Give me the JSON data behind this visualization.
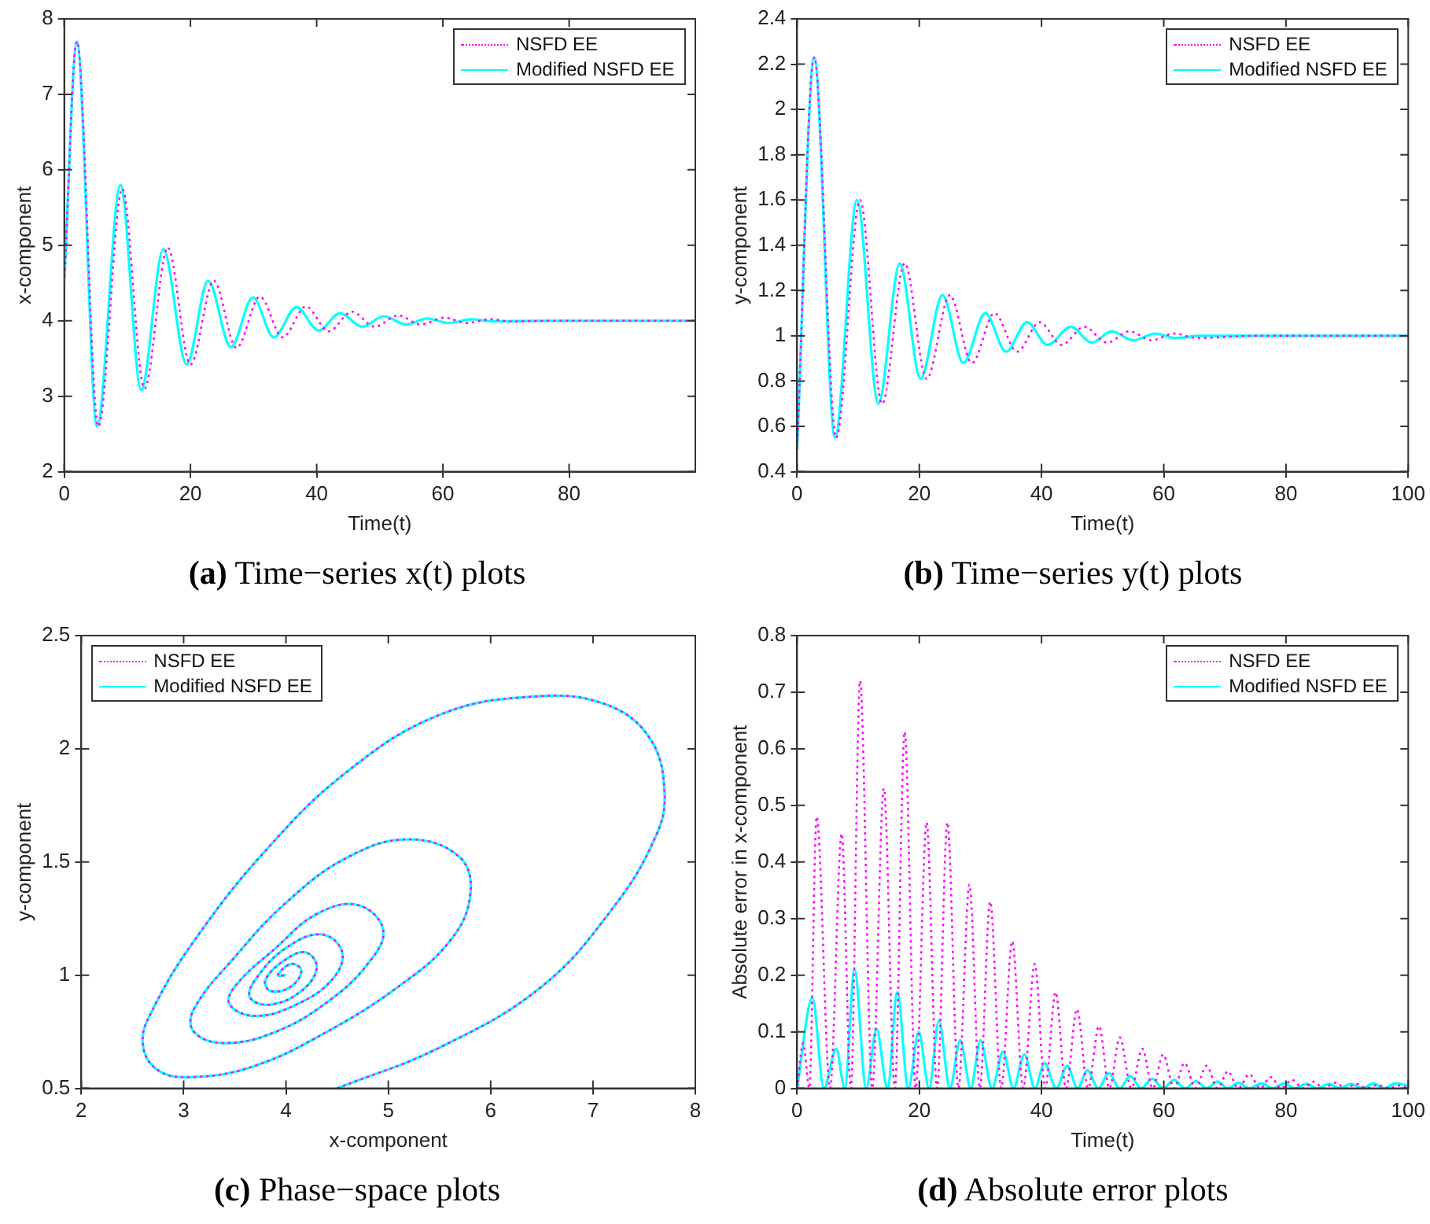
{
  "chart_data": [
    {
      "type": "line",
      "title": "(a) Time−series x(t) plots",
      "xlabel": "Time(t)",
      "ylabel": "x-component",
      "xlim": [
        0,
        100
      ],
      "xticks": [
        0,
        20,
        40,
        60,
        80
      ],
      "ylim": [
        2,
        8
      ],
      "yticks": [
        2,
        3,
        4,
        5,
        6,
        7,
        8
      ],
      "grid": false,
      "legend": "top right",
      "marker": "none",
      "series": [
        {
          "name": "NSFD EE",
          "color": "#ff00ff",
          "line_style": "dotted",
          "x": [
            0,
            2,
            5.4,
            9.2,
            12.7,
            16.4,
            20,
            23.7,
            27.3,
            31,
            34.6,
            38.3,
            41.9,
            45.6,
            49.2,
            52.9,
            56.5,
            60.2,
            63.8,
            67.5,
            71,
            78,
            100
          ],
          "values": [
            4.5,
            7.7,
            2.6,
            5.75,
            3.1,
            4.97,
            3.42,
            4.53,
            3.64,
            4.32,
            3.78,
            4.19,
            3.86,
            4.12,
            3.92,
            4.07,
            3.95,
            4.04,
            3.97,
            4.02,
            3.99,
            4.0,
            4.0
          ]
        },
        {
          "name": "Modified NSFD EE",
          "color": "#00ffff",
          "line_style": "solid",
          "x": [
            0,
            2,
            5.2,
            8.9,
            12.2,
            15.7,
            19.4,
            22.8,
            26.4,
            29.9,
            33.2,
            36.8,
            40.3,
            43.7,
            47.2,
            50.6,
            54.2,
            57.5,
            60.9,
            64.5,
            68,
            75,
            100
          ],
          "values": [
            4.5,
            7.7,
            2.6,
            5.8,
            3.08,
            4.95,
            3.42,
            4.53,
            3.65,
            4.31,
            3.78,
            4.18,
            3.87,
            4.1,
            3.92,
            4.06,
            3.95,
            4.03,
            3.97,
            4.02,
            3.99,
            4.0,
            4.0
          ]
        }
      ]
    },
    {
      "type": "line",
      "title": "(b) Time−series y(t) plots",
      "xlabel": "Time(t)",
      "ylabel": "y-component",
      "xlim": [
        0,
        100
      ],
      "xticks": [
        0,
        20,
        40,
        60,
        80,
        100
      ],
      "ylim": [
        0.4,
        2.4
      ],
      "yticks": [
        0.4,
        0.6,
        0.8,
        1,
        1.2,
        1.4,
        1.6,
        1.8,
        2,
        2.2,
        2.4
      ],
      "grid": false,
      "legend": "top right",
      "marker": "none",
      "series": [
        {
          "name": "NSFD EE",
          "color": "#ff00ff",
          "line_style": "dotted",
          "x": [
            0,
            2.8,
            6.4,
            10.3,
            13.9,
            17.6,
            21.2,
            25,
            28.6,
            32.3,
            36,
            39.7,
            43.3,
            47,
            50.7,
            54.4,
            58,
            61.7,
            65.4,
            75,
            100
          ],
          "values": [
            0.5,
            2.23,
            0.55,
            1.6,
            0.7,
            1.32,
            0.81,
            1.18,
            0.88,
            1.1,
            0.93,
            1.06,
            0.96,
            1.04,
            0.97,
            1.02,
            0.98,
            1.01,
            0.99,
            1.0,
            1.0
          ]
        },
        {
          "name": "Modified NSFD EE",
          "color": "#00ffff",
          "line_style": "solid",
          "x": [
            0,
            2.8,
            6.2,
            9.8,
            13.3,
            16.8,
            20.2,
            23.8,
            27.2,
            30.8,
            34.2,
            37.6,
            41,
            44.8,
            48.2,
            51.5,
            55,
            58.6,
            62,
            66,
            72,
            100
          ],
          "values": [
            0.5,
            2.23,
            0.55,
            1.6,
            0.7,
            1.32,
            0.81,
            1.18,
            0.88,
            1.1,
            0.93,
            1.06,
            0.96,
            1.04,
            0.97,
            1.02,
            0.98,
            1.01,
            0.99,
            1.0,
            1.0,
            1.0
          ]
        }
      ]
    },
    {
      "type": "line",
      "title": "(c) Phase−space plots",
      "xlabel": "x-component",
      "ylabel": "y-component",
      "xlim": [
        2,
        8
      ],
      "xticks": [
        2,
        3,
        4,
        5,
        6,
        7,
        8
      ],
      "ylim": [
        0.5,
        2.5
      ],
      "yticks": [
        0.5,
        1,
        1.5,
        2,
        2.5
      ],
      "grid": false,
      "legend": "top left",
      "marker": "none",
      "series": [
        {
          "name": "NSFD EE",
          "color": "#ff00ff",
          "line_style": "dotted",
          "x": [
            4.5,
            5.5,
            6.5,
            7.2,
            7.6,
            7.7,
            7.55,
            7.1,
            6.4,
            5.5,
            4.6,
            3.8,
            3.1,
            2.7,
            2.6,
            2.75,
            3.1,
            3.7,
            4.4,
            5.1,
            5.6,
            5.8,
            5.7,
            5.2,
            4.6,
            4.0,
            3.5,
            3.1,
            3.1,
            3.4,
            3.9,
            4.4,
            4.8,
            4.95,
            4.7,
            4.3,
            3.9,
            3.5,
            3.45,
            3.7,
            4.1,
            4.45,
            4.55,
            4.35,
            4.0,
            3.7,
            3.65,
            3.85,
            4.15,
            4.3,
            4.2,
            4.0,
            3.8,
            3.85,
            4.05,
            4.15,
            4.05,
            3.92,
            4.0
          ],
          "values": [
            0.5,
            0.68,
            0.95,
            1.3,
            1.6,
            1.8,
            2.05,
            2.2,
            2.23,
            2.15,
            1.9,
            1.55,
            1.15,
            0.85,
            0.7,
            0.58,
            0.55,
            0.6,
            0.75,
            0.95,
            1.15,
            1.35,
            1.52,
            1.6,
            1.52,
            1.32,
            1.08,
            0.85,
            0.75,
            0.7,
            0.75,
            0.88,
            1.05,
            1.2,
            1.31,
            1.27,
            1.12,
            0.95,
            0.87,
            0.82,
            0.87,
            0.98,
            1.1,
            1.18,
            1.12,
            0.98,
            0.9,
            0.87,
            0.93,
            1.03,
            1.1,
            1.07,
            0.98,
            0.93,
            0.95,
            1.02,
            1.05,
            1.0,
            1.0
          ]
        },
        {
          "name": "Modified NSFD EE",
          "color": "#00ffff",
          "line_style": "solid",
          "x": [
            4.5,
            5.5,
            6.5,
            7.2,
            7.6,
            7.7,
            7.55,
            7.1,
            6.4,
            5.5,
            4.6,
            3.8,
            3.1,
            2.7,
            2.6,
            2.75,
            3.1,
            3.7,
            4.4,
            5.1,
            5.6,
            5.8,
            5.7,
            5.2,
            4.6,
            4.0,
            3.5,
            3.1,
            3.1,
            3.4,
            3.9,
            4.4,
            4.8,
            4.95,
            4.7,
            4.3,
            3.9,
            3.5,
            3.45,
            3.7,
            4.1,
            4.45,
            4.55,
            4.35,
            4.0,
            3.7,
            3.65,
            3.85,
            4.15,
            4.3,
            4.2,
            4.0,
            3.8,
            3.85,
            4.05,
            4.15,
            4.05,
            3.92,
            4.0
          ],
          "values": [
            0.5,
            0.68,
            0.95,
            1.3,
            1.6,
            1.8,
            2.05,
            2.2,
            2.23,
            2.15,
            1.9,
            1.55,
            1.15,
            0.85,
            0.7,
            0.58,
            0.55,
            0.6,
            0.75,
            0.95,
            1.15,
            1.35,
            1.52,
            1.6,
            1.52,
            1.32,
            1.08,
            0.85,
            0.75,
            0.7,
            0.75,
            0.88,
            1.05,
            1.2,
            1.31,
            1.27,
            1.12,
            0.95,
            0.87,
            0.82,
            0.87,
            0.98,
            1.1,
            1.18,
            1.12,
            0.98,
            0.9,
            0.87,
            0.93,
            1.03,
            1.1,
            1.07,
            0.98,
            0.93,
            0.95,
            1.02,
            1.05,
            1.0,
            1.0
          ]
        }
      ]
    },
    {
      "type": "line",
      "title": "(d) Absolute error plots",
      "xlabel": "Time(t)",
      "ylabel": "Absolute error in x-component",
      "xlim": [
        0,
        100
      ],
      "xticks": [
        0,
        20,
        40,
        60,
        80,
        100
      ],
      "ylim": [
        0,
        0.8
      ],
      "yticks": [
        0,
        0.1,
        0.2,
        0.3,
        0.4,
        0.5,
        0.6,
        0.7,
        0.8
      ],
      "grid": false,
      "legend": "top right",
      "marker": "none",
      "series": [
        {
          "name": "NSFD EE",
          "color": "#ff00ff",
          "line_style": "dotted",
          "x": [
            0,
            1,
            2,
            3.2,
            5.4,
            7.3,
            8.8,
            10.3,
            12.3,
            14.2,
            16,
            17.6,
            19.4,
            21.2,
            22.9,
            24.6,
            26.4,
            28.2,
            29.9,
            31.6,
            33.4,
            35.2,
            37,
            38.9,
            40.6,
            42.3,
            44,
            45.8,
            47.6,
            49.4,
            51.1,
            52.8,
            54.7,
            56.5,
            58.2,
            59.9,
            61.7,
            63.4,
            65.2,
            67,
            68.8,
            70.5,
            72.2,
            74,
            75.8,
            77.5,
            79.2,
            81,
            82.8,
            84.5,
            86.2,
            88,
            89.8,
            91.5,
            93.2,
            95,
            96.8,
            98.5,
            100
          ],
          "values": [
            0,
            0.08,
            0,
            0.48,
            0,
            0.45,
            0,
            0.72,
            0,
            0.53,
            0,
            0.63,
            0,
            0.47,
            0,
            0.47,
            0,
            0.36,
            0,
            0.33,
            0,
            0.26,
            0,
            0.22,
            0,
            0.17,
            0,
            0.14,
            0,
            0.11,
            0,
            0.09,
            0,
            0.07,
            0,
            0.06,
            0,
            0.045,
            0,
            0.04,
            0,
            0.03,
            0,
            0.025,
            0,
            0.02,
            0,
            0.015,
            0,
            0.012,
            0,
            0.01,
            0,
            0.008,
            0,
            0.006,
            0,
            0.005,
            0
          ]
        },
        {
          "name": "Modified NSFD EE",
          "color": "#00ffff",
          "line_style": "solid",
          "x": [
            0,
            2.5,
            4.4,
            6.4,
            7.8,
            9.4,
            11.3,
            13,
            14.8,
            16.4,
            18.2,
            19.9,
            21.6,
            23.2,
            25,
            26.7,
            28.4,
            30,
            31.9,
            33.7,
            35.4,
            37.2,
            38.9,
            40.5,
            42.4,
            44.2,
            45.9,
            47.5,
            49.3,
            51,
            52.8,
            54.5,
            56.3,
            58.1,
            59.9,
            61.7,
            63.5,
            65.3,
            67,
            68.8,
            70.5,
            72.2,
            74,
            76,
            77.9,
            79.7,
            81.5,
            83.3,
            85.1,
            87,
            88.8,
            90.6,
            92.5,
            94.3,
            96.1,
            97.9,
            100
          ],
          "values": [
            0,
            0.16,
            0,
            0.07,
            0,
            0.21,
            0,
            0.105,
            0,
            0.17,
            0,
            0.1,
            0,
            0.12,
            0,
            0.085,
            0,
            0.085,
            0,
            0.065,
            0,
            0.06,
            0,
            0.045,
            0,
            0.04,
            0,
            0.032,
            0,
            0.027,
            0,
            0.022,
            0,
            0.017,
            0,
            0.015,
            0,
            0.013,
            0,
            0.012,
            0,
            0.01,
            0,
            0.009,
            0,
            0.009,
            0,
            0.008,
            0,
            0.008,
            0,
            0.008,
            0,
            0.009,
            0,
            0.009,
            0.005
          ]
        }
      ]
    }
  ]
}
